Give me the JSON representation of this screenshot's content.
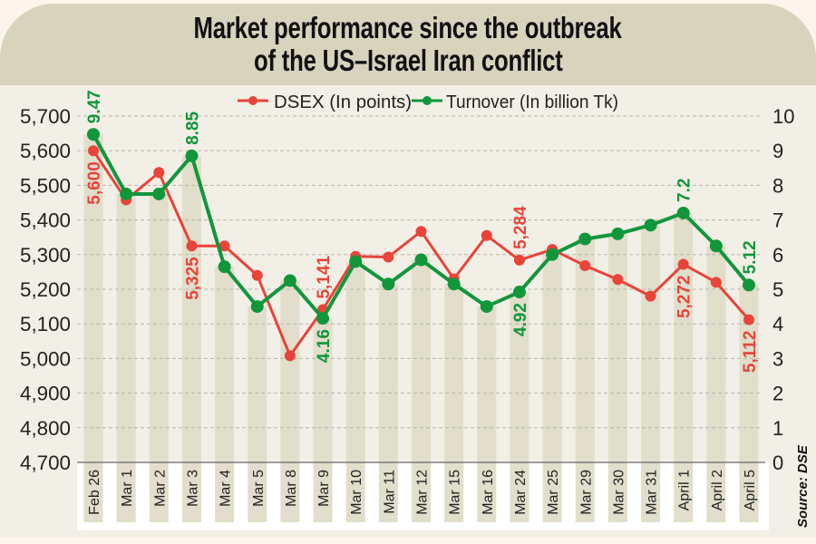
{
  "title": {
    "line1": "Market performance since the outbreak",
    "line2": "of the US–Israel Iran conflict"
  },
  "source": "Source: DSE",
  "colors": {
    "dsex": "#e8443a",
    "turnover": "#12963c",
    "bar": "#e1decb",
    "grid": "#b8b5ab",
    "background": "#f2efe6",
    "title_band": "#d8d3bd"
  },
  "chart_data": {
    "type": "line",
    "title": "Market performance since the outbreak of the US–Israel Iran conflict",
    "categories": [
      "Feb 26",
      "Mar 1",
      "Mar 2",
      "Mar 3",
      "Mar 4",
      "Mar 5",
      "Mar 8",
      "Mar 9",
      "Mar 10",
      "Mar 11",
      "Mar 12",
      "Mar 15",
      "Mar 16",
      "Mar 24",
      "Mar 25",
      "Mar 29",
      "Mar 30",
      "Mar 31",
      "April 1",
      "April 2",
      "April 5"
    ],
    "series": [
      {
        "name": "DSEX (In points)",
        "axis": "left",
        "values": [
          5600,
          5458,
          5537,
          5325,
          5325,
          5240,
          5008,
          5141,
          5295,
          5293,
          5367,
          5230,
          5355,
          5284,
          5315,
          5268,
          5228,
          5180,
          5272,
          5220,
          5112
        ],
        "labels": {
          "0": "5,600",
          "3": "5,325",
          "7": "5,141",
          "13": "5,284",
          "18": "5,272",
          "20": "5,112"
        }
      },
      {
        "name": "Turnover (In billion Tk)",
        "axis": "right",
        "values": [
          9.47,
          7.75,
          7.75,
          8.85,
          5.65,
          4.5,
          5.25,
          4.16,
          5.8,
          5.15,
          5.85,
          5.15,
          4.5,
          4.92,
          6.0,
          6.45,
          6.6,
          6.85,
          7.2,
          6.25,
          5.12
        ],
        "labels": {
          "0": "9.47",
          "3": "8.85",
          "7": "4.16",
          "13": "4.92",
          "18": "7.2",
          "20": "5.12"
        },
        "also_shown_as": "background bars"
      }
    ],
    "left_axis": {
      "ylim": [
        4700,
        5700
      ],
      "ticks": [
        "5,700",
        "5,600",
        "5,500",
        "5,400",
        "5,300",
        "5,200",
        "5,100",
        "5,000",
        "4,900",
        "4,800",
        "4,700"
      ],
      "tick_values": [
        5700,
        5600,
        5500,
        5400,
        5300,
        5200,
        5100,
        5000,
        4900,
        4800,
        4700
      ]
    },
    "right_axis": {
      "ylim": [
        0,
        10
      ],
      "ticks": [
        "10",
        "9",
        "8",
        "7",
        "6",
        "5",
        "4",
        "3",
        "2",
        "1",
        "0"
      ],
      "tick_values": [
        10,
        9,
        8,
        7,
        6,
        5,
        4,
        3,
        2,
        1,
        0
      ]
    },
    "legend": {
      "position": "top-center",
      "entries": [
        "DSEX (In points)",
        "Turnover (In billion Tk)"
      ]
    },
    "grid": true,
    "xlabel": "",
    "ylabel": ""
  }
}
